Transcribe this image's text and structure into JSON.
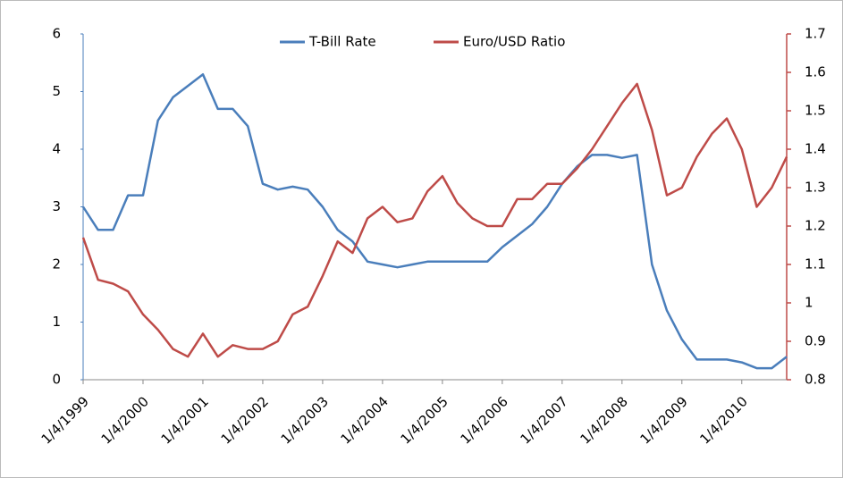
{
  "chart_data": {
    "type": "line",
    "categories": [
      "1/4/1999",
      null,
      null,
      null,
      "1/4/2000",
      null,
      null,
      null,
      "1/4/2001",
      null,
      null,
      null,
      "1/4/2002",
      null,
      null,
      null,
      "1/4/2003",
      null,
      null,
      null,
      "1/4/2004",
      null,
      null,
      null,
      "1/4/2005",
      null,
      null,
      null,
      "1/4/2006",
      null,
      null,
      null,
      "1/4/2007",
      null,
      null,
      null,
      "1/4/2008",
      null,
      null,
      null,
      "1/4/2009",
      null,
      null,
      null,
      "1/4/2010",
      null,
      null,
      null
    ],
    "series": [
      {
        "name": "T-Bill Rate",
        "color": "#4a7ebb",
        "values": [
          3.0,
          2.6,
          2.6,
          3.2,
          3.2,
          4.5,
          4.9,
          5.1,
          5.3,
          4.7,
          4.7,
          4.4,
          3.4,
          3.3,
          3.35,
          3.3,
          3.0,
          2.6,
          2.4,
          2.05,
          2.0,
          1.95,
          2.0,
          2.05,
          2.05,
          2.05,
          2.05,
          2.05,
          2.3,
          2.5,
          2.7,
          3.0,
          3.4,
          3.7,
          3.9,
          3.9,
          3.85,
          3.9,
          2.0,
          1.2,
          0.7,
          0.35,
          0.35,
          0.35,
          0.3,
          0.2,
          0.2,
          0.4
        ]
      },
      {
        "name": "Euro/USD Ratio",
        "color": "#be4b48",
        "axis": "y2",
        "values": [
          1.17,
          1.06,
          1.05,
          1.03,
          0.97,
          0.93,
          0.88,
          0.86,
          0.92,
          0.86,
          0.89,
          0.88,
          0.88,
          0.9,
          0.97,
          0.99,
          1.07,
          1.16,
          1.13,
          1.22,
          1.25,
          1.21,
          1.22,
          1.29,
          1.33,
          1.26,
          1.22,
          1.2,
          1.2,
          1.27,
          1.27,
          1.31,
          1.31,
          1.35,
          1.4,
          1.46,
          1.52,
          1.57,
          1.45,
          1.28,
          1.3,
          1.38,
          1.44,
          1.48,
          1.4,
          1.25,
          1.3,
          1.38
        ]
      }
    ],
    "ylim": [
      0,
      6
    ],
    "yticks": [
      0,
      1,
      2,
      3,
      4,
      5,
      6
    ],
    "y2lim": [
      0.8,
      1.7
    ],
    "y2ticks": [
      0.8,
      0.9,
      1,
      1.1,
      1.2,
      1.3,
      1.4,
      1.5,
      1.6,
      1.7
    ],
    "legend": "top"
  }
}
